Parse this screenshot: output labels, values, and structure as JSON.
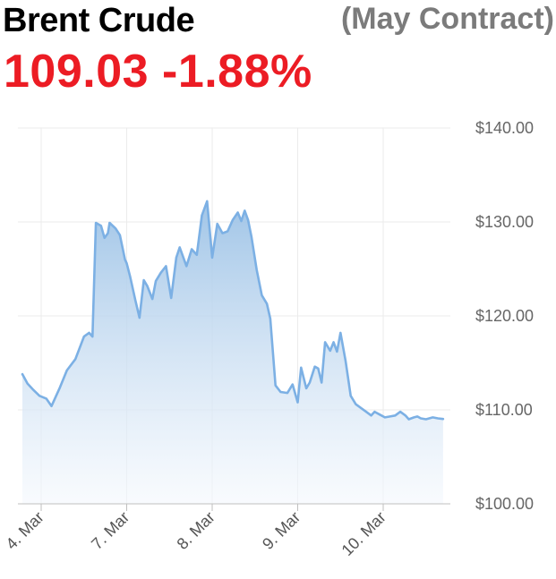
{
  "header": {
    "title": "Brent Crude",
    "contract": "(May Contract)",
    "price": "109.03",
    "change": "-1.88%"
  },
  "colors": {
    "title": "#000000",
    "contract": "#7b7b7b",
    "quote": "#ec1c24",
    "line": "#7cb0e4",
    "area_top": "#9cc2e6",
    "area_bottom": "#f4f8fd",
    "grid": "#ebebeb"
  },
  "chart_data": {
    "type": "area",
    "title": "",
    "xlabel": "",
    "ylabel": "",
    "ylim": [
      100,
      140
    ],
    "grid": true,
    "y_ticks": [
      100,
      110,
      120,
      130,
      140
    ],
    "y_tick_labels": [
      "$100.00",
      "$110.00",
      "$120.00",
      "$130.00",
      "$140.00"
    ],
    "x_ticks": [
      0,
      1,
      2,
      3,
      4
    ],
    "x_tick_labels": [
      "4. Mar",
      "7. Mar",
      "8. Mar",
      "9. Mar",
      "10. Mar"
    ],
    "xlim": [
      -0.25,
      4.73
    ],
    "series": [
      {
        "x": [
          -0.22,
          -0.16,
          -0.1,
          -0.02,
          0.06,
          0.12,
          0.22,
          0.3,
          0.4,
          0.5,
          0.56,
          0.6,
          0.64,
          0.7,
          0.74,
          0.78,
          0.8,
          0.87,
          0.92,
          0.98,
          1.0,
          1.04,
          1.1,
          1.15,
          1.2,
          1.24,
          1.3,
          1.34,
          1.4,
          1.46,
          1.52,
          1.58,
          1.62,
          1.7,
          1.76,
          1.82,
          1.88,
          1.94,
          2.0,
          2.06,
          2.12,
          2.18,
          2.24,
          2.3,
          2.34,
          2.38,
          2.42,
          2.46,
          2.52,
          2.58,
          2.64,
          2.68,
          2.74,
          2.8,
          2.88,
          2.94,
          3.0,
          3.04,
          3.1,
          3.14,
          3.2,
          3.24,
          3.28,
          3.32,
          3.38,
          3.42,
          3.46,
          3.5,
          3.56,
          3.62,
          3.68,
          3.74,
          3.8,
          3.86,
          3.9,
          3.96,
          4.02,
          4.08,
          4.14,
          4.2,
          4.26,
          4.3,
          4.36,
          4.4,
          4.44,
          4.5,
          4.58,
          4.64,
          4.7
        ],
        "values": [
          113.8,
          112.8,
          112.2,
          111.5,
          111.2,
          110.4,
          112.4,
          114.2,
          115.4,
          117.8,
          118.2,
          117.8,
          129.9,
          129.6,
          128.3,
          128.8,
          129.9,
          129.3,
          128.6,
          126.0,
          125.6,
          124.2,
          121.7,
          119.8,
          123.8,
          123.2,
          121.8,
          123.7,
          124.6,
          125.3,
          121.9,
          126.2,
          127.3,
          125.3,
          127.1,
          126.5,
          130.7,
          132.2,
          126.2,
          129.8,
          128.8,
          129.0,
          130.2,
          131.0,
          130.1,
          131.2,
          130.2,
          128.4,
          124.9,
          122.2,
          121.3,
          119.7,
          112.6,
          111.9,
          111.8,
          112.7,
          110.8,
          114.5,
          112.3,
          112.9,
          114.6,
          114.4,
          112.9,
          117.2,
          116.3,
          117.2,
          116.2,
          118.2,
          115.2,
          111.5,
          110.6,
          110.2,
          109.8,
          109.4,
          109.8,
          109.5,
          109.2,
          109.3,
          109.4,
          109.8,
          109.4,
          109.0,
          109.2,
          109.3,
          109.1,
          109.0,
          109.2,
          109.1,
          109.03
        ]
      }
    ]
  }
}
